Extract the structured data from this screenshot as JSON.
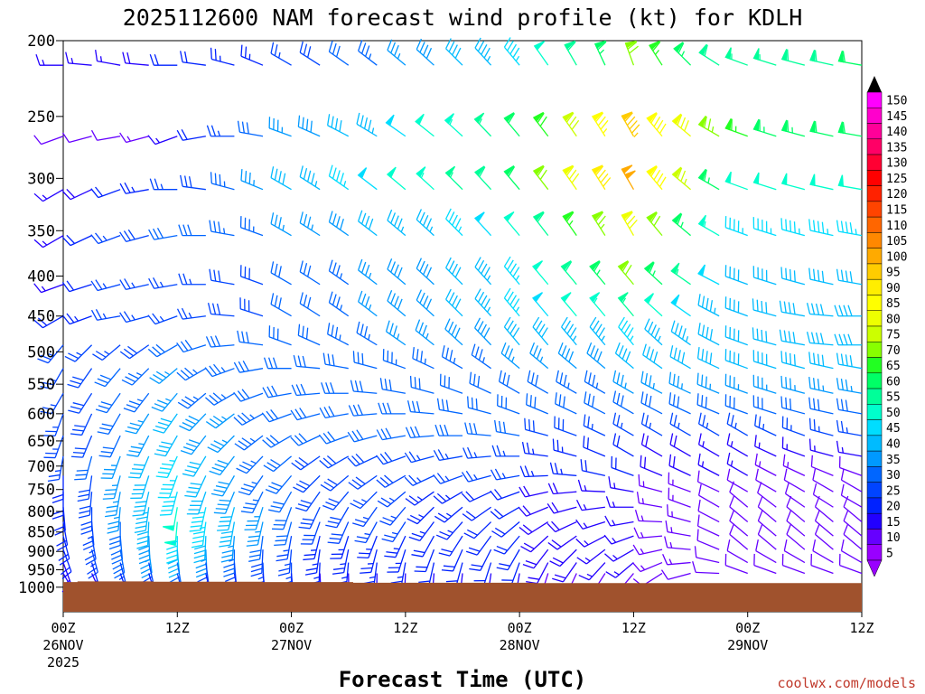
{
  "chart_data": {
    "type": "wind-barb-profile",
    "title": "2025112600 NAM forecast wind profile (kt) for KDLH",
    "xlabel": "Forecast Time (UTC)",
    "credit": "coolwx.com/models",
    "pressure_ticks": [
      "200",
      "250",
      "300",
      "350",
      "400",
      "450",
      "500",
      "550",
      "600",
      "650",
      "700",
      "750",
      "800",
      "850",
      "900",
      "950",
      "1000"
    ],
    "pressure_values": [
      200,
      250,
      300,
      350,
      400,
      450,
      500,
      550,
      600,
      650,
      700,
      750,
      800,
      850,
      900,
      950,
      1000
    ],
    "ylim": [
      200,
      1075
    ],
    "time_ticks": [
      {
        "hour": 0,
        "label": "00Z",
        "date": "26NOV",
        "year": "2025"
      },
      {
        "hour": 12,
        "label": "12Z",
        "date": "",
        "year": ""
      },
      {
        "hour": 24,
        "label": "00Z",
        "date": "27NOV",
        "year": ""
      },
      {
        "hour": 36,
        "label": "12Z",
        "date": "",
        "year": ""
      },
      {
        "hour": 48,
        "label": "00Z",
        "date": "28NOV",
        "year": ""
      },
      {
        "hour": 60,
        "label": "12Z",
        "date": "",
        "year": ""
      },
      {
        "hour": 72,
        "label": "00Z",
        "date": "29NOV",
        "year": ""
      },
      {
        "hour": 84,
        "label": "12Z",
        "date": "",
        "year": ""
      }
    ],
    "xlim": [
      0,
      84
    ],
    "barb_interval_hours": 3,
    "colorbar": {
      "labels": [
        "150",
        "145",
        "140",
        "135",
        "130",
        "125",
        "120",
        "115",
        "110",
        "105",
        "100",
        "95",
        "90",
        "85",
        "80",
        "75",
        "70",
        "65",
        "60",
        "55",
        "50",
        "45",
        "40",
        "35",
        "30",
        "25",
        "20",
        "15",
        "10",
        "5"
      ],
      "colors": [
        "#ff00ff",
        "#ff00cc",
        "#ff0099",
        "#ff0066",
        "#ff0033",
        "#ff0000",
        "#ff2200",
        "#ff4400",
        "#ff6600",
        "#ff8800",
        "#ffaa00",
        "#ffcc00",
        "#ffee00",
        "#ffff00",
        "#eeff00",
        "#ccff00",
        "#88ff00",
        "#22ff22",
        "#00ff66",
        "#00ff99",
        "#00ffcc",
        "#00ddff",
        "#00bbff",
        "#0099ff",
        "#0066ff",
        "#0044ff",
        "#0022ff",
        "#2200ff",
        "#6600ff",
        "#9900ff"
      ]
    },
    "terrain": {
      "color": "#a0522d",
      "surface_hpa": [
        {
          "hour": 0,
          "p": 985
        },
        {
          "hour": 1.5,
          "p": 983
        },
        {
          "hour": 9.5,
          "p": 984
        },
        {
          "hour": 21,
          "p": 985
        },
        {
          "hour": 30.5,
          "p": 987
        },
        {
          "hour": 49.5,
          "p": 988
        },
        {
          "hour": 84,
          "p": 988
        }
      ]
    },
    "levels": [
      {
        "p": 215,
        "dir": [
          [
            0,
            270,
            15
          ],
          [
            6,
            280,
            15
          ],
          [
            12,
            270,
            20
          ],
          [
            24,
            300,
            25
          ],
          [
            48,
            320,
            45
          ],
          [
            60,
            340,
            70
          ],
          [
            72,
            290,
            55
          ],
          [
            84,
            280,
            60
          ]
        ]
      },
      {
        "p": 265,
        "dir": [
          [
            0,
            250,
            10
          ],
          [
            6,
            260,
            10
          ],
          [
            12,
            250,
            15
          ],
          [
            24,
            290,
            35
          ],
          [
            48,
            320,
            60
          ],
          [
            60,
            330,
            95
          ],
          [
            72,
            290,
            65
          ],
          [
            84,
            280,
            60
          ]
        ]
      },
      {
        "p": 310,
        "dir": [
          [
            0,
            240,
            15
          ],
          [
            6,
            250,
            20
          ],
          [
            12,
            270,
            25
          ],
          [
            24,
            300,
            40
          ],
          [
            48,
            320,
            60
          ],
          [
            60,
            330,
            100
          ],
          [
            72,
            290,
            50
          ],
          [
            84,
            280,
            50
          ]
        ]
      },
      {
        "p": 355,
        "dir": [
          [
            0,
            240,
            15
          ],
          [
            6,
            250,
            25
          ],
          [
            12,
            260,
            30
          ],
          [
            24,
            300,
            35
          ],
          [
            48,
            320,
            50
          ],
          [
            60,
            330,
            80
          ],
          [
            72,
            290,
            45
          ],
          [
            84,
            280,
            45
          ]
        ]
      },
      {
        "p": 410,
        "dir": [
          [
            0,
            250,
            15
          ],
          [
            6,
            255,
            25
          ],
          [
            12,
            260,
            25
          ],
          [
            24,
            300,
            30
          ],
          [
            48,
            320,
            45
          ],
          [
            60,
            320,
            70
          ],
          [
            72,
            290,
            40
          ],
          [
            84,
            280,
            40
          ]
        ]
      },
      {
        "p": 450,
        "dir": [
          [
            0,
            240,
            20
          ],
          [
            6,
            260,
            25
          ],
          [
            12,
            250,
            25
          ],
          [
            24,
            300,
            30
          ],
          [
            48,
            320,
            45
          ],
          [
            60,
            320,
            55
          ],
          [
            72,
            290,
            40
          ],
          [
            84,
            270,
            40
          ]
        ]
      },
      {
        "p": 490,
        "dir": [
          [
            0,
            220,
            25
          ],
          [
            6,
            230,
            25
          ],
          [
            12,
            240,
            30
          ],
          [
            24,
            290,
            30
          ],
          [
            48,
            320,
            40
          ],
          [
            60,
            320,
            45
          ],
          [
            72,
            290,
            40
          ],
          [
            84,
            270,
            40
          ]
        ]
      },
      {
        "p": 525,
        "dir": [
          [
            0,
            210,
            25
          ],
          [
            6,
            220,
            30
          ],
          [
            12,
            230,
            35
          ],
          [
            24,
            270,
            30
          ],
          [
            48,
            310,
            35
          ],
          [
            60,
            310,
            40
          ],
          [
            72,
            290,
            40
          ],
          [
            84,
            280,
            40
          ]
        ]
      },
      {
        "p": 565,
        "dir": [
          [
            0,
            210,
            25
          ],
          [
            6,
            215,
            30
          ],
          [
            12,
            220,
            35
          ],
          [
            24,
            260,
            30
          ],
          [
            48,
            300,
            30
          ],
          [
            60,
            300,
            35
          ],
          [
            72,
            290,
            35
          ],
          [
            84,
            280,
            35
          ]
        ]
      },
      {
        "p": 600,
        "dir": [
          [
            0,
            200,
            25
          ],
          [
            6,
            210,
            30
          ],
          [
            12,
            215,
            40
          ],
          [
            24,
            250,
            30
          ],
          [
            48,
            290,
            30
          ],
          [
            60,
            300,
            30
          ],
          [
            72,
            290,
            30
          ],
          [
            84,
            280,
            30
          ]
        ]
      },
      {
        "p": 640,
        "dir": [
          [
            0,
            200,
            25
          ],
          [
            6,
            205,
            30
          ],
          [
            12,
            210,
            40
          ],
          [
            24,
            240,
            30
          ],
          [
            48,
            280,
            30
          ],
          [
            60,
            300,
            25
          ],
          [
            72,
            300,
            25
          ],
          [
            84,
            280,
            25
          ]
        ]
      },
      {
        "p": 680,
        "dir": [
          [
            0,
            190,
            25
          ],
          [
            6,
            200,
            35
          ],
          [
            12,
            205,
            45
          ],
          [
            24,
            230,
            30
          ],
          [
            48,
            270,
            25
          ],
          [
            60,
            300,
            20
          ],
          [
            72,
            300,
            15
          ],
          [
            84,
            280,
            15
          ]
        ]
      },
      {
        "p": 720,
        "dir": [
          [
            0,
            180,
            20
          ],
          [
            6,
            195,
            35
          ],
          [
            12,
            200,
            45
          ],
          [
            24,
            220,
            30
          ],
          [
            48,
            260,
            25
          ],
          [
            60,
            290,
            20
          ],
          [
            72,
            300,
            15
          ],
          [
            84,
            290,
            10
          ]
        ]
      },
      {
        "p": 755,
        "dir": [
          [
            0,
            180,
            20
          ],
          [
            6,
            190,
            35
          ],
          [
            12,
            195,
            45
          ],
          [
            24,
            210,
            30
          ],
          [
            48,
            250,
            20
          ],
          [
            60,
            280,
            15
          ],
          [
            72,
            300,
            10
          ],
          [
            84,
            300,
            10
          ]
        ]
      },
      {
        "p": 790,
        "dir": [
          [
            0,
            175,
            20
          ],
          [
            6,
            185,
            35
          ],
          [
            12,
            190,
            50
          ],
          [
            24,
            200,
            30
          ],
          [
            48,
            240,
            20
          ],
          [
            60,
            270,
            15
          ],
          [
            72,
            310,
            10
          ],
          [
            84,
            300,
            10
          ]
        ]
      },
      {
        "p": 825,
        "dir": [
          [
            0,
            170,
            20
          ],
          [
            6,
            180,
            30
          ],
          [
            12,
            185,
            50
          ],
          [
            24,
            195,
            30
          ],
          [
            48,
            230,
            20
          ],
          [
            60,
            260,
            15
          ],
          [
            72,
            310,
            10
          ],
          [
            84,
            310,
            10
          ]
        ]
      },
      {
        "p": 860,
        "dir": [
          [
            0,
            165,
            20
          ],
          [
            6,
            175,
            30
          ],
          [
            12,
            180,
            45
          ],
          [
            24,
            190,
            25
          ],
          [
            48,
            220,
            20
          ],
          [
            60,
            250,
            15
          ],
          [
            72,
            310,
            10
          ],
          [
            84,
            310,
            10
          ]
        ]
      },
      {
        "p": 895,
        "dir": [
          [
            0,
            160,
            20
          ],
          [
            6,
            170,
            30
          ],
          [
            12,
            175,
            40
          ],
          [
            24,
            185,
            25
          ],
          [
            48,
            210,
            20
          ],
          [
            60,
            240,
            15
          ],
          [
            72,
            310,
            10
          ],
          [
            84,
            310,
            10
          ]
        ]
      },
      {
        "p": 930,
        "dir": [
          [
            0,
            160,
            15
          ],
          [
            6,
            165,
            25
          ],
          [
            12,
            170,
            30
          ],
          [
            24,
            180,
            25
          ],
          [
            48,
            200,
            20
          ],
          [
            60,
            230,
            15
          ],
          [
            72,
            300,
            10
          ],
          [
            84,
            300,
            10
          ]
        ]
      },
      {
        "p": 960,
        "dir": [
          [
            0,
            150,
            15
          ],
          [
            6,
            160,
            20
          ],
          [
            12,
            165,
            25
          ],
          [
            24,
            175,
            20
          ],
          [
            48,
            190,
            15
          ],
          [
            60,
            220,
            10
          ],
          [
            72,
            290,
            10
          ],
          [
            84,
            290,
            10
          ]
        ]
      }
    ]
  }
}
